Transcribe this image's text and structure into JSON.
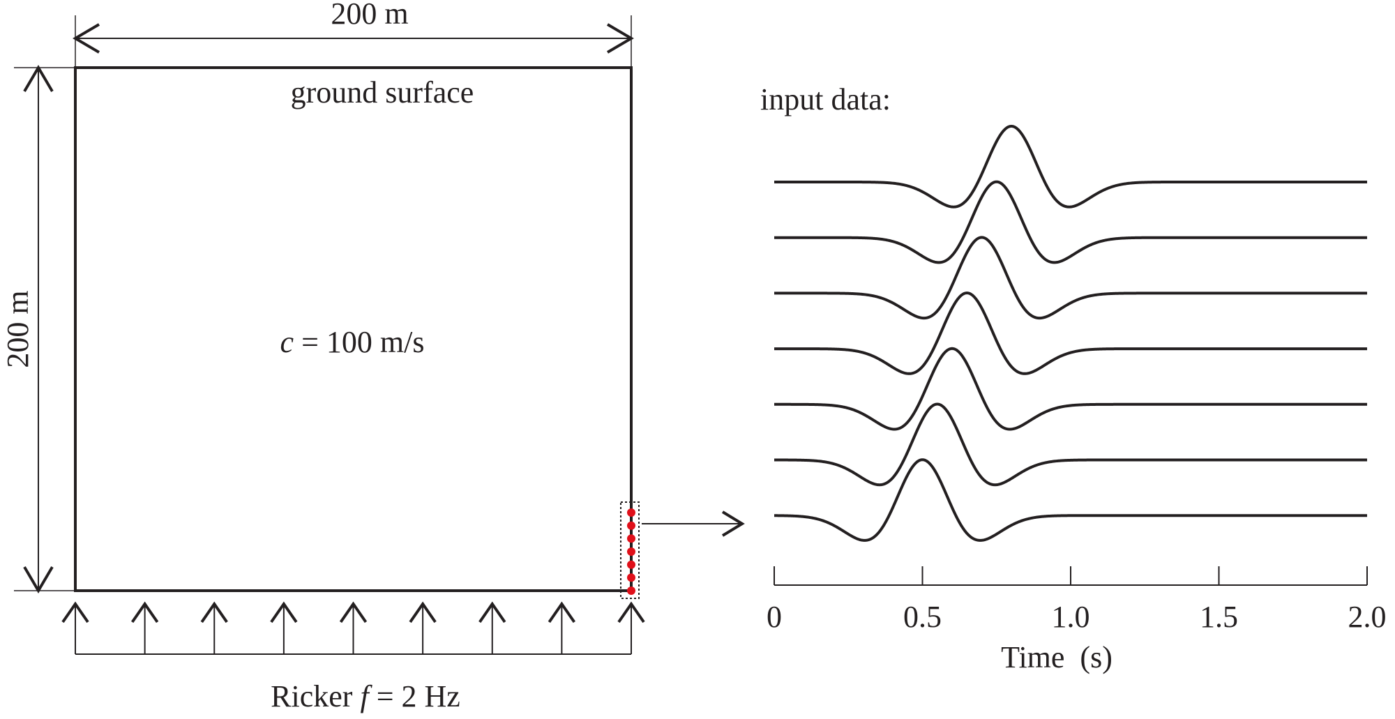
{
  "domain_label": {
    "width_label": "200 m",
    "height_label": "200 m",
    "surface_label": "ground surface",
    "velocity_var": "c",
    "velocity_text": " = 100 m/s",
    "source_prefix": "Ricker ",
    "source_var": "f",
    "source_suffix": " = 2 Hz"
  },
  "colors": {
    "ink": "#231f20",
    "receiver": "#e0101a"
  },
  "receivers_count": 7,
  "source_arrows_count": 9,
  "chart_data": {
    "type": "line",
    "title": "input data:",
    "xlabel": "Time  (s)",
    "xlim": [
      0,
      2.0
    ],
    "xticks": [
      0,
      0.5,
      1.0,
      1.5,
      2.0
    ],
    "xtick_labels": [
      "0",
      "0.5",
      "1.0",
      "1.5",
      "2.0"
    ],
    "wavelet": "ricker",
    "frequency_hz": 2,
    "series": [
      {
        "peak_time": 0.8
      },
      {
        "peak_time": 0.75
      },
      {
        "peak_time": 0.7
      },
      {
        "peak_time": 0.65
      },
      {
        "peak_time": 0.6
      },
      {
        "peak_time": 0.55
      },
      {
        "peak_time": 0.5
      }
    ]
  }
}
